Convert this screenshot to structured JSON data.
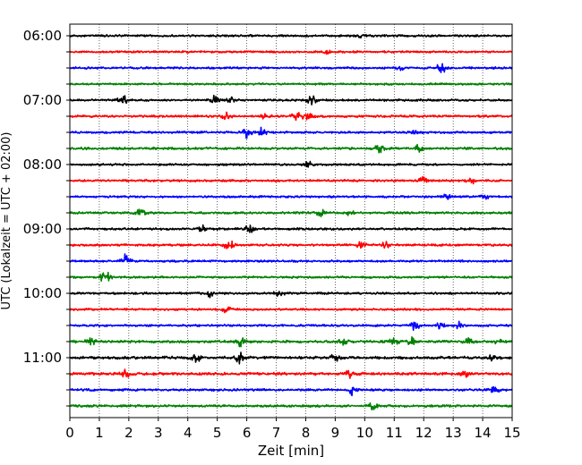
{
  "chart_data": {
    "type": "line",
    "title": "",
    "xlabel": "Zeit  [min]",
    "ylabel": "UTC (Lokalzeit = UTC + 02:00)",
    "xlim": [
      0,
      15
    ],
    "x_ticks": [
      "0",
      "1",
      "2",
      "3",
      "4",
      "5",
      "6",
      "7",
      "8",
      "9",
      "10",
      "11",
      "12",
      "13",
      "14",
      "15"
    ],
    "y_tick_labels": [
      "06:00",
      "07:00",
      "08:00",
      "09:00",
      "10:00",
      "11:00"
    ],
    "grid": "vertical dotted",
    "trace_interval_minutes": 15,
    "trace_colors": [
      "#000000",
      "#ff0000",
      "#0000ff",
      "#008000"
    ],
    "traces": [
      {
        "start": "06:00",
        "color": "#000000",
        "noise": 0.35,
        "events": [
          [
            9.9,
            1.0
          ]
        ]
      },
      {
        "start": "06:15",
        "color": "#ff0000",
        "noise": 0.3,
        "events": [
          [
            8.7,
            1.2
          ]
        ]
      },
      {
        "start": "06:30",
        "color": "#0000ff",
        "noise": 0.35,
        "events": [
          [
            11.2,
            1.0
          ],
          [
            12.6,
            3.5
          ]
        ]
      },
      {
        "start": "06:45",
        "color": "#008000",
        "noise": 0.3,
        "events": []
      },
      {
        "start": "07:00",
        "color": "#000000",
        "noise": 0.4,
        "events": [
          [
            1.8,
            2.4
          ],
          [
            4.9,
            2.6
          ],
          [
            5.5,
            2.0
          ],
          [
            8.2,
            2.6
          ]
        ]
      },
      {
        "start": "07:15",
        "color": "#ff0000",
        "noise": 0.4,
        "events": [
          [
            5.3,
            1.8
          ],
          [
            6.6,
            2.0
          ],
          [
            7.7,
            2.4
          ],
          [
            8.1,
            3.6
          ]
        ]
      },
      {
        "start": "07:30",
        "color": "#0000ff",
        "noise": 0.4,
        "events": [
          [
            6.0,
            3.4
          ],
          [
            6.5,
            2.0
          ],
          [
            11.7,
            1.6
          ]
        ]
      },
      {
        "start": "07:45",
        "color": "#008000",
        "noise": 0.5,
        "events": [
          [
            10.5,
            1.8
          ],
          [
            11.8,
            1.8
          ]
        ]
      },
      {
        "start": "08:00",
        "color": "#000000",
        "noise": 0.35,
        "events": [
          [
            8.1,
            1.6
          ]
        ]
      },
      {
        "start": "08:15",
        "color": "#ff0000",
        "noise": 0.4,
        "events": [
          [
            12.0,
            1.8
          ],
          [
            13.6,
            2.0
          ]
        ]
      },
      {
        "start": "08:30",
        "color": "#0000ff",
        "noise": 0.35,
        "events": [
          [
            12.8,
            1.6
          ],
          [
            14.1,
            1.4
          ]
        ]
      },
      {
        "start": "08:45",
        "color": "#008000",
        "noise": 0.4,
        "events": [
          [
            2.4,
            2.2
          ],
          [
            8.5,
            2.0
          ],
          [
            9.5,
            1.6
          ]
        ]
      },
      {
        "start": "09:00",
        "color": "#000000",
        "noise": 0.4,
        "events": [
          [
            4.5,
            1.6
          ],
          [
            6.1,
            2.6
          ]
        ]
      },
      {
        "start": "09:15",
        "color": "#ff0000",
        "noise": 0.4,
        "events": [
          [
            5.4,
            3.2
          ],
          [
            9.9,
            2.0
          ],
          [
            10.7,
            1.4
          ]
        ]
      },
      {
        "start": "09:30",
        "color": "#0000ff",
        "noise": 0.35,
        "events": [
          [
            1.9,
            3.6
          ]
        ]
      },
      {
        "start": "09:45",
        "color": "#008000",
        "noise": 0.35,
        "events": [
          [
            1.2,
            4.0
          ]
        ]
      },
      {
        "start": "10:00",
        "color": "#000000",
        "noise": 0.4,
        "events": [
          [
            4.8,
            2.2
          ],
          [
            7.1,
            1.4
          ]
        ]
      },
      {
        "start": "10:15",
        "color": "#ff0000",
        "noise": 0.35,
        "events": [
          [
            5.3,
            1.2
          ]
        ]
      },
      {
        "start": "10:30",
        "color": "#0000ff",
        "noise": 0.35,
        "events": [
          [
            11.7,
            2.8
          ],
          [
            12.6,
            2.6
          ],
          [
            13.2,
            1.6
          ]
        ]
      },
      {
        "start": "10:45",
        "color": "#008000",
        "noise": 0.6,
        "events": [
          [
            0.7,
            2.0
          ],
          [
            5.8,
            2.4
          ],
          [
            9.3,
            2.0
          ],
          [
            11.0,
            2.2
          ],
          [
            11.6,
            2.4
          ],
          [
            13.5,
            2.2
          ],
          [
            14.6,
            2.0
          ]
        ]
      },
      {
        "start": "11:00",
        "color": "#000000",
        "noise": 0.7,
        "events": [
          [
            4.3,
            2.0
          ],
          [
            5.7,
            4.0
          ],
          [
            9.0,
            2.0
          ],
          [
            14.3,
            2.2
          ]
        ]
      },
      {
        "start": "11:15",
        "color": "#ff0000",
        "noise": 0.7,
        "events": [
          [
            1.9,
            1.8
          ],
          [
            9.5,
            1.8
          ],
          [
            13.4,
            1.8
          ]
        ]
      },
      {
        "start": "11:30",
        "color": "#0000ff",
        "noise": 0.45,
        "events": [
          [
            9.6,
            3.4
          ],
          [
            14.4,
            1.6
          ]
        ]
      },
      {
        "start": "11:45",
        "color": "#008000",
        "noise": 0.45,
        "events": [
          [
            10.3,
            2.4
          ]
        ]
      }
    ]
  }
}
